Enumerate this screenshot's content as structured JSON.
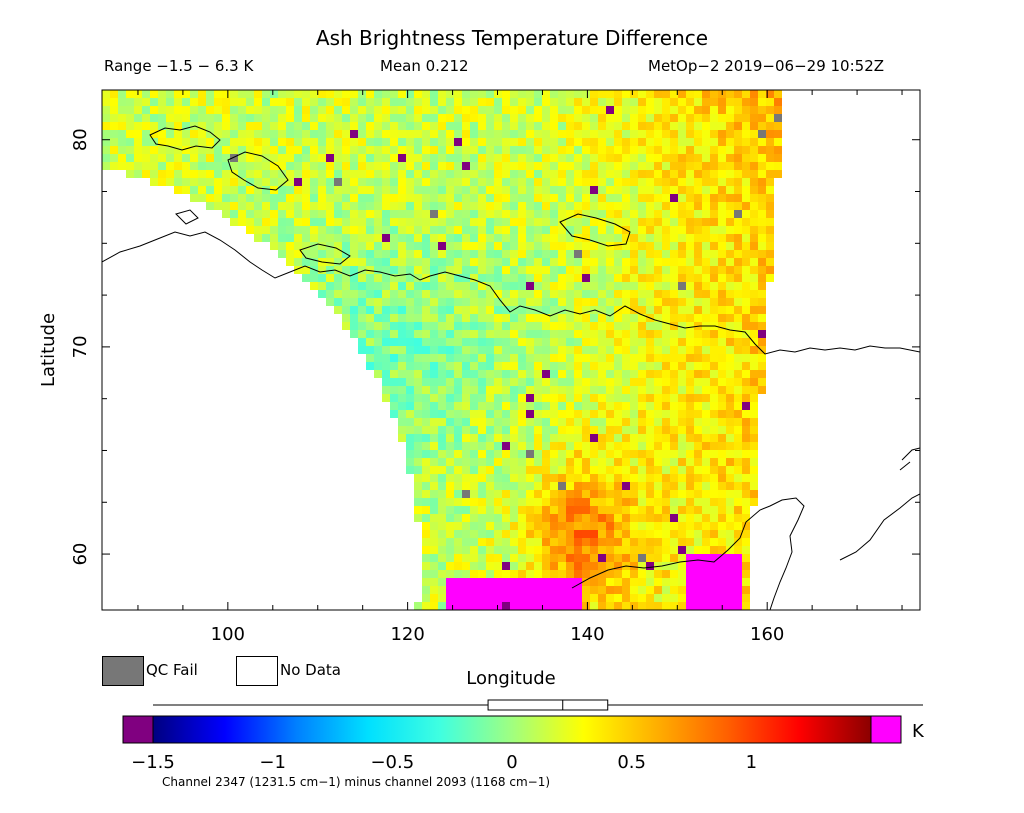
{
  "header": {
    "title": "Ash Brightness Temperature Difference",
    "range_text": "Range −1.5 − 6.3 K",
    "mean_text": "Mean 0.212",
    "satellite_time": "MetOp−2 2019−06−29 10:52Z"
  },
  "chart_data": {
    "type": "heatmap",
    "title": "Ash Brightness Temperature Difference",
    "xlabel": "Longitude",
    "ylabel": "Latitude",
    "xlim": [
      86,
      177
    ],
    "ylim": [
      57.3,
      82.4
    ],
    "x_ticks": [
      100,
      120,
      140,
      160
    ],
    "y_ticks": [
      60,
      70,
      80
    ],
    "x_tick_labels": [
      "100",
      "120",
      "140",
      "160"
    ],
    "y_tick_labels": [
      "60",
      "70",
      "80"
    ],
    "colorbar": {
      "min": -1.5,
      "max": 1.5,
      "unit": "K",
      "ticks": [
        -1.5,
        -1,
        -0.5,
        0,
        0.5,
        1
      ],
      "tick_labels": [
        "−1.5",
        "−1",
        "−0.5",
        "0",
        "0.5",
        "1"
      ],
      "stops": [
        "#000080",
        "#0000ff",
        "#0080ff",
        "#00e0ff",
        "#40ffe0",
        "#a0ff80",
        "#ffff00",
        "#ffb000",
        "#ff6000",
        "#ff0000",
        "#8b0000"
      ],
      "underflow_color": "#800080",
      "overflow_color": "#ff00ff",
      "mean": 0.212,
      "box_range": [
        -0.1,
        0.4
      ]
    },
    "legend": [
      {
        "label": "QC Fail",
        "color": "#777777"
      },
      {
        "label": "No Data",
        "color": "#ffffff"
      }
    ],
    "footnote": "Channel 2347 (1231.5 cm−1) minus channel 2093 (1168 cm−1)"
  }
}
